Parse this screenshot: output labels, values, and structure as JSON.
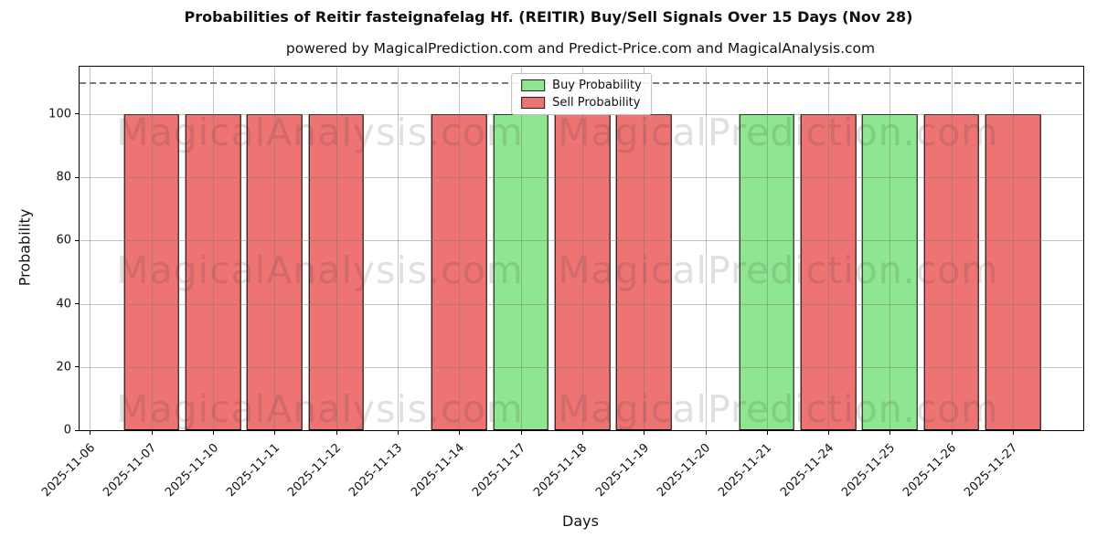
{
  "title": "Probabilities of Reitir fasteignafelag Hf. (REITIR) Buy/Sell Signals Over 15 Days (Nov 28)",
  "subtitle": "powered by MagicalPrediction.com and Predict-Price.com and MagicalAnalysis.com",
  "watermarks": {
    "left_text": "MagicalAnalysis.com",
    "right_text": "MagicalPrediction.com"
  },
  "legend": [
    {
      "label": "Buy Probability",
      "color": "#8ee690"
    },
    {
      "label": "Sell Probability",
      "color": "#ee7373"
    }
  ],
  "chart_data": {
    "type": "bar",
    "title": "Probabilities of Reitir fasteignafelag Hf. (REITIR) Buy/Sell Signals Over 15 Days (Nov 28)",
    "xlabel": "Days",
    "ylabel": "Probability",
    "categories": [
      "2025-11-06",
      "2025-11-07",
      "2025-11-10",
      "2025-11-11",
      "2025-11-12",
      "2025-11-13",
      "2025-11-14",
      "2025-11-17",
      "2025-11-18",
      "2025-11-19",
      "2025-11-20",
      "2025-11-21",
      "2025-11-24",
      "2025-11-25",
      "2025-11-26",
      "2025-11-27"
    ],
    "series": [
      {
        "name": "Buy Probability",
        "color": "#8ee690",
        "values": [
          0,
          0,
          0,
          0,
          0,
          0,
          0,
          100,
          0,
          0,
          0,
          100,
          0,
          100,
          0,
          0
        ]
      },
      {
        "name": "Sell Probability",
        "color": "#ee7373",
        "values": [
          0,
          100,
          100,
          100,
          100,
          0,
          100,
          0,
          100,
          100,
          0,
          0,
          100,
          0,
          100,
          100
        ]
      }
    ],
    "ylim": [
      0,
      115
    ],
    "yticks": [
      0,
      20,
      40,
      60,
      80,
      100
    ],
    "dashed_line_y": 110,
    "grid": true,
    "legend_position": "upper center",
    "bar_edge_color": "#000000"
  }
}
